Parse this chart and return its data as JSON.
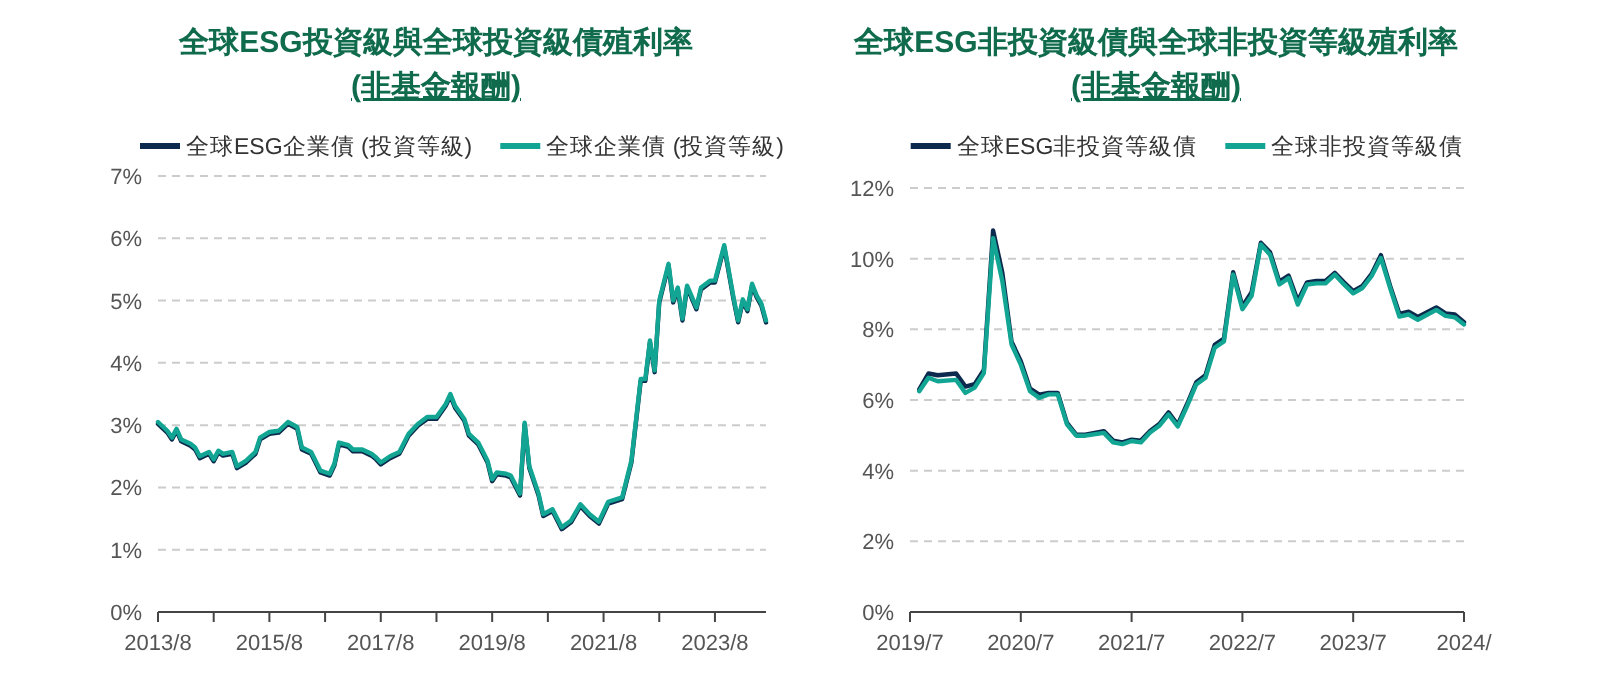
{
  "chart_data": [
    {
      "type": "line",
      "title": "全球ESG投資級與全球投資級債殖利率",
      "subtitle": "(非基金報酬)",
      "legend": "top",
      "grid": "y",
      "x": [
        "2013-08",
        "2013-10",
        "2013-11",
        "2013-12",
        "2014-01",
        "2014-03",
        "2014-04",
        "2014-05",
        "2014-07",
        "2014-08",
        "2014-09",
        "2014-10",
        "2014-12",
        "2015-01",
        "2015-03",
        "2015-05",
        "2015-06",
        "2015-08",
        "2015-10",
        "2015-12",
        "2016-02",
        "2016-03",
        "2016-05",
        "2016-07",
        "2016-09",
        "2016-10",
        "2016-11",
        "2017-01",
        "2017-02",
        "2017-04",
        "2017-06",
        "2017-07",
        "2017-08",
        "2017-10",
        "2017-12",
        "2018-02",
        "2018-04",
        "2018-06",
        "2018-08",
        "2018-10",
        "2018-11",
        "2018-12",
        "2019-02",
        "2019-03",
        "2019-05",
        "2019-07",
        "2019-08",
        "2019-09",
        "2019-11",
        "2019-12",
        "2020-02",
        "2020-03",
        "2020-04",
        "2020-06",
        "2020-07",
        "2020-09",
        "2020-11",
        "2021-01",
        "2021-03",
        "2021-05",
        "2021-07",
        "2021-09",
        "2021-12",
        "2022-02",
        "2022-04",
        "2022-05",
        "2022-06",
        "2022-07",
        "2022-08",
        "2022-10",
        "2022-11",
        "2022-12",
        "2023-01",
        "2023-02",
        "2023-04",
        "2023-05",
        "2023-07",
        "2023-08",
        "2023-10",
        "2023-12",
        "2024-01",
        "2024-02",
        "2024-03",
        "2024-04",
        "2024-05",
        "2024-06",
        "2024-07"
      ],
      "xlim": [
        "2013-08",
        "2024-07"
      ],
      "xticks": [
        {
          "value": "2013-08",
          "label": "2013/8"
        },
        {
          "value": "2014-08",
          "label": null
        },
        {
          "value": "2015-08",
          "label": "2015/8"
        },
        {
          "value": "2016-08",
          "label": null
        },
        {
          "value": "2017-08",
          "label": "2017/8"
        },
        {
          "value": "2018-08",
          "label": null
        },
        {
          "value": "2019-08",
          "label": "2019/8"
        },
        {
          "value": "2020-08",
          "label": null
        },
        {
          "value": "2021-08",
          "label": "2021/8"
        },
        {
          "value": "2022-08",
          "label": null
        },
        {
          "value": "2023-08",
          "label": "2023/8"
        }
      ],
      "ylim": [
        0,
        7
      ],
      "yticks": [
        {
          "value": 0,
          "label": "0%"
        },
        {
          "value": 1,
          "label": "1%"
        },
        {
          "value": 2,
          "label": "2%"
        },
        {
          "value": 3,
          "label": "3%"
        },
        {
          "value": 4,
          "label": "4%"
        },
        {
          "value": 5,
          "label": "5%"
        },
        {
          "value": 6,
          "label": "6%"
        },
        {
          "value": 7,
          "label": "7%"
        }
      ],
      "series": [
        {
          "name": "全球ESG企業債 (投資等級)",
          "color": "#0c2a4d",
          "values": [
            3.02,
            2.88,
            2.77,
            2.91,
            2.74,
            2.67,
            2.61,
            2.47,
            2.54,
            2.42,
            2.56,
            2.51,
            2.54,
            2.31,
            2.4,
            2.54,
            2.77,
            2.86,
            2.88,
            3.02,
            2.94,
            2.61,
            2.54,
            2.24,
            2.19,
            2.35,
            2.69,
            2.65,
            2.58,
            2.58,
            2.51,
            2.45,
            2.37,
            2.47,
            2.54,
            2.83,
            2.99,
            3.1,
            3.1,
            3.31,
            3.47,
            3.28,
            3.07,
            2.83,
            2.69,
            2.4,
            2.1,
            2.21,
            2.19,
            2.16,
            1.87,
            3.01,
            2.31,
            1.87,
            1.54,
            1.62,
            1.33,
            1.44,
            1.7,
            1.54,
            1.42,
            1.74,
            1.81,
            2.4,
            3.71,
            3.71,
            4.33,
            3.85,
            4.97,
            5.56,
            4.97,
            5.18,
            4.68,
            5.21,
            4.86,
            5.18,
            5.29,
            5.29,
            5.86,
            5.02,
            4.65,
            4.99,
            4.83,
            5.24,
            5.05,
            4.92,
            4.65
          ]
        },
        {
          "name": "全球企業債 (投資等級)",
          "color": "#12a594",
          "values": [
            3.05,
            2.91,
            2.8,
            2.94,
            2.77,
            2.7,
            2.64,
            2.5,
            2.57,
            2.45,
            2.59,
            2.54,
            2.57,
            2.34,
            2.43,
            2.57,
            2.8,
            2.89,
            2.91,
            3.05,
            2.97,
            2.64,
            2.57,
            2.27,
            2.22,
            2.38,
            2.72,
            2.68,
            2.61,
            2.61,
            2.54,
            2.48,
            2.4,
            2.5,
            2.57,
            2.86,
            3.02,
            3.13,
            3.13,
            3.34,
            3.5,
            3.31,
            3.1,
            2.86,
            2.72,
            2.43,
            2.13,
            2.24,
            2.22,
            2.19,
            1.9,
            3.04,
            2.34,
            1.9,
            1.57,
            1.65,
            1.36,
            1.47,
            1.73,
            1.57,
            1.45,
            1.77,
            1.84,
            2.43,
            3.74,
            3.74,
            4.36,
            3.88,
            5.0,
            5.59,
            5.0,
            5.21,
            4.71,
            5.24,
            4.89,
            5.21,
            5.32,
            5.32,
            5.89,
            5.05,
            4.68,
            5.02,
            4.86,
            5.27,
            5.08,
            4.95,
            4.68
          ]
        }
      ]
    },
    {
      "type": "line",
      "title": "全球ESG非投資級債與全球非投資等級殖利率",
      "subtitle": "(非基金報酬)",
      "legend": "top",
      "grid": "y",
      "x": [
        "2019-08",
        "2019-09",
        "2019-10",
        "2019-12",
        "2020-01",
        "2020-02",
        "2020-03",
        "2020-04",
        "2020-05",
        "2020-06",
        "2020-07",
        "2020-08",
        "2020-09",
        "2020-10",
        "2020-11",
        "2020-12",
        "2021-01",
        "2021-02",
        "2021-04",
        "2021-05",
        "2021-06",
        "2021-07",
        "2021-08",
        "2021-09",
        "2021-10",
        "2021-11",
        "2021-12",
        "2022-01",
        "2022-02",
        "2022-03",
        "2022-04",
        "2022-05",
        "2022-06",
        "2022-07",
        "2022-08",
        "2022-09",
        "2022-10",
        "2022-11",
        "2022-12",
        "2023-01",
        "2023-02",
        "2023-03",
        "2023-04",
        "2023-05",
        "2023-06",
        "2023-07",
        "2023-08",
        "2023-09",
        "2023-10",
        "2023-11",
        "2023-12",
        "2024-01",
        "2024-02",
        "2024-04",
        "2024-05",
        "2024-06",
        "2024-07"
      ],
      "xlim": [
        "2019-07",
        "2024-07"
      ],
      "xticks": [
        {
          "value": "2019-07",
          "label": "2019/7"
        },
        {
          "value": "2020-07",
          "label": "2020/7"
        },
        {
          "value": "2021-07",
          "label": "2021/7"
        },
        {
          "value": "2022-07",
          "label": "2022/7"
        },
        {
          "value": "2023-07",
          "label": "2023/7"
        },
        {
          "value": "2024-07",
          "label": "2024/"
        }
      ],
      "ylim": [
        0,
        12
      ],
      "yticks": [
        {
          "value": 0,
          "label": "0%"
        },
        {
          "value": 2,
          "label": "2%"
        },
        {
          "value": 4,
          "label": "4%"
        },
        {
          "value": 6,
          "label": "6%"
        },
        {
          "value": 8,
          "label": "8%"
        },
        {
          "value": 10,
          "label": "10%"
        },
        {
          "value": 12,
          "label": "12%"
        }
      ],
      "series": [
        {
          "name": "全球ESG非投資等級債",
          "color": "#0c2a4d",
          "values": [
            6.3,
            6.75,
            6.7,
            6.75,
            6.38,
            6.45,
            6.85,
            10.8,
            9.6,
            7.65,
            7.1,
            6.32,
            6.15,
            6.2,
            6.2,
            5.35,
            5.02,
            5.02,
            5.12,
            4.85,
            4.8,
            4.88,
            4.85,
            5.12,
            5.32,
            5.65,
            5.3,
            5.88,
            6.5,
            6.7,
            7.56,
            7.74,
            9.62,
            8.65,
            9.05,
            10.45,
            10.18,
            9.35,
            9.52,
            8.8,
            9.33,
            9.37,
            9.37,
            9.6,
            9.33,
            9.08,
            9.23,
            9.57,
            10.1,
            9.23,
            8.44,
            8.5,
            8.35,
            8.62,
            8.45,
            8.42,
            8.2
          ]
        },
        {
          "name": "全球非投資等級債",
          "color": "#12a594",
          "values": [
            6.25,
            6.63,
            6.53,
            6.57,
            6.2,
            6.35,
            6.76,
            10.58,
            9.36,
            7.57,
            7.0,
            6.25,
            6.06,
            6.16,
            6.16,
            5.31,
            4.99,
            4.99,
            5.07,
            4.8,
            4.75,
            4.84,
            4.8,
            5.08,
            5.27,
            5.59,
            5.25,
            5.82,
            6.44,
            6.63,
            7.48,
            7.66,
            9.55,
            8.57,
            8.95,
            10.4,
            10.11,
            9.27,
            9.45,
            8.7,
            9.27,
            9.3,
            9.3,
            9.55,
            9.27,
            9.02,
            9.17,
            9.51,
            10.02,
            9.17,
            8.36,
            8.42,
            8.27,
            8.55,
            8.38,
            8.34,
            8.14
          ]
        }
      ]
    }
  ]
}
